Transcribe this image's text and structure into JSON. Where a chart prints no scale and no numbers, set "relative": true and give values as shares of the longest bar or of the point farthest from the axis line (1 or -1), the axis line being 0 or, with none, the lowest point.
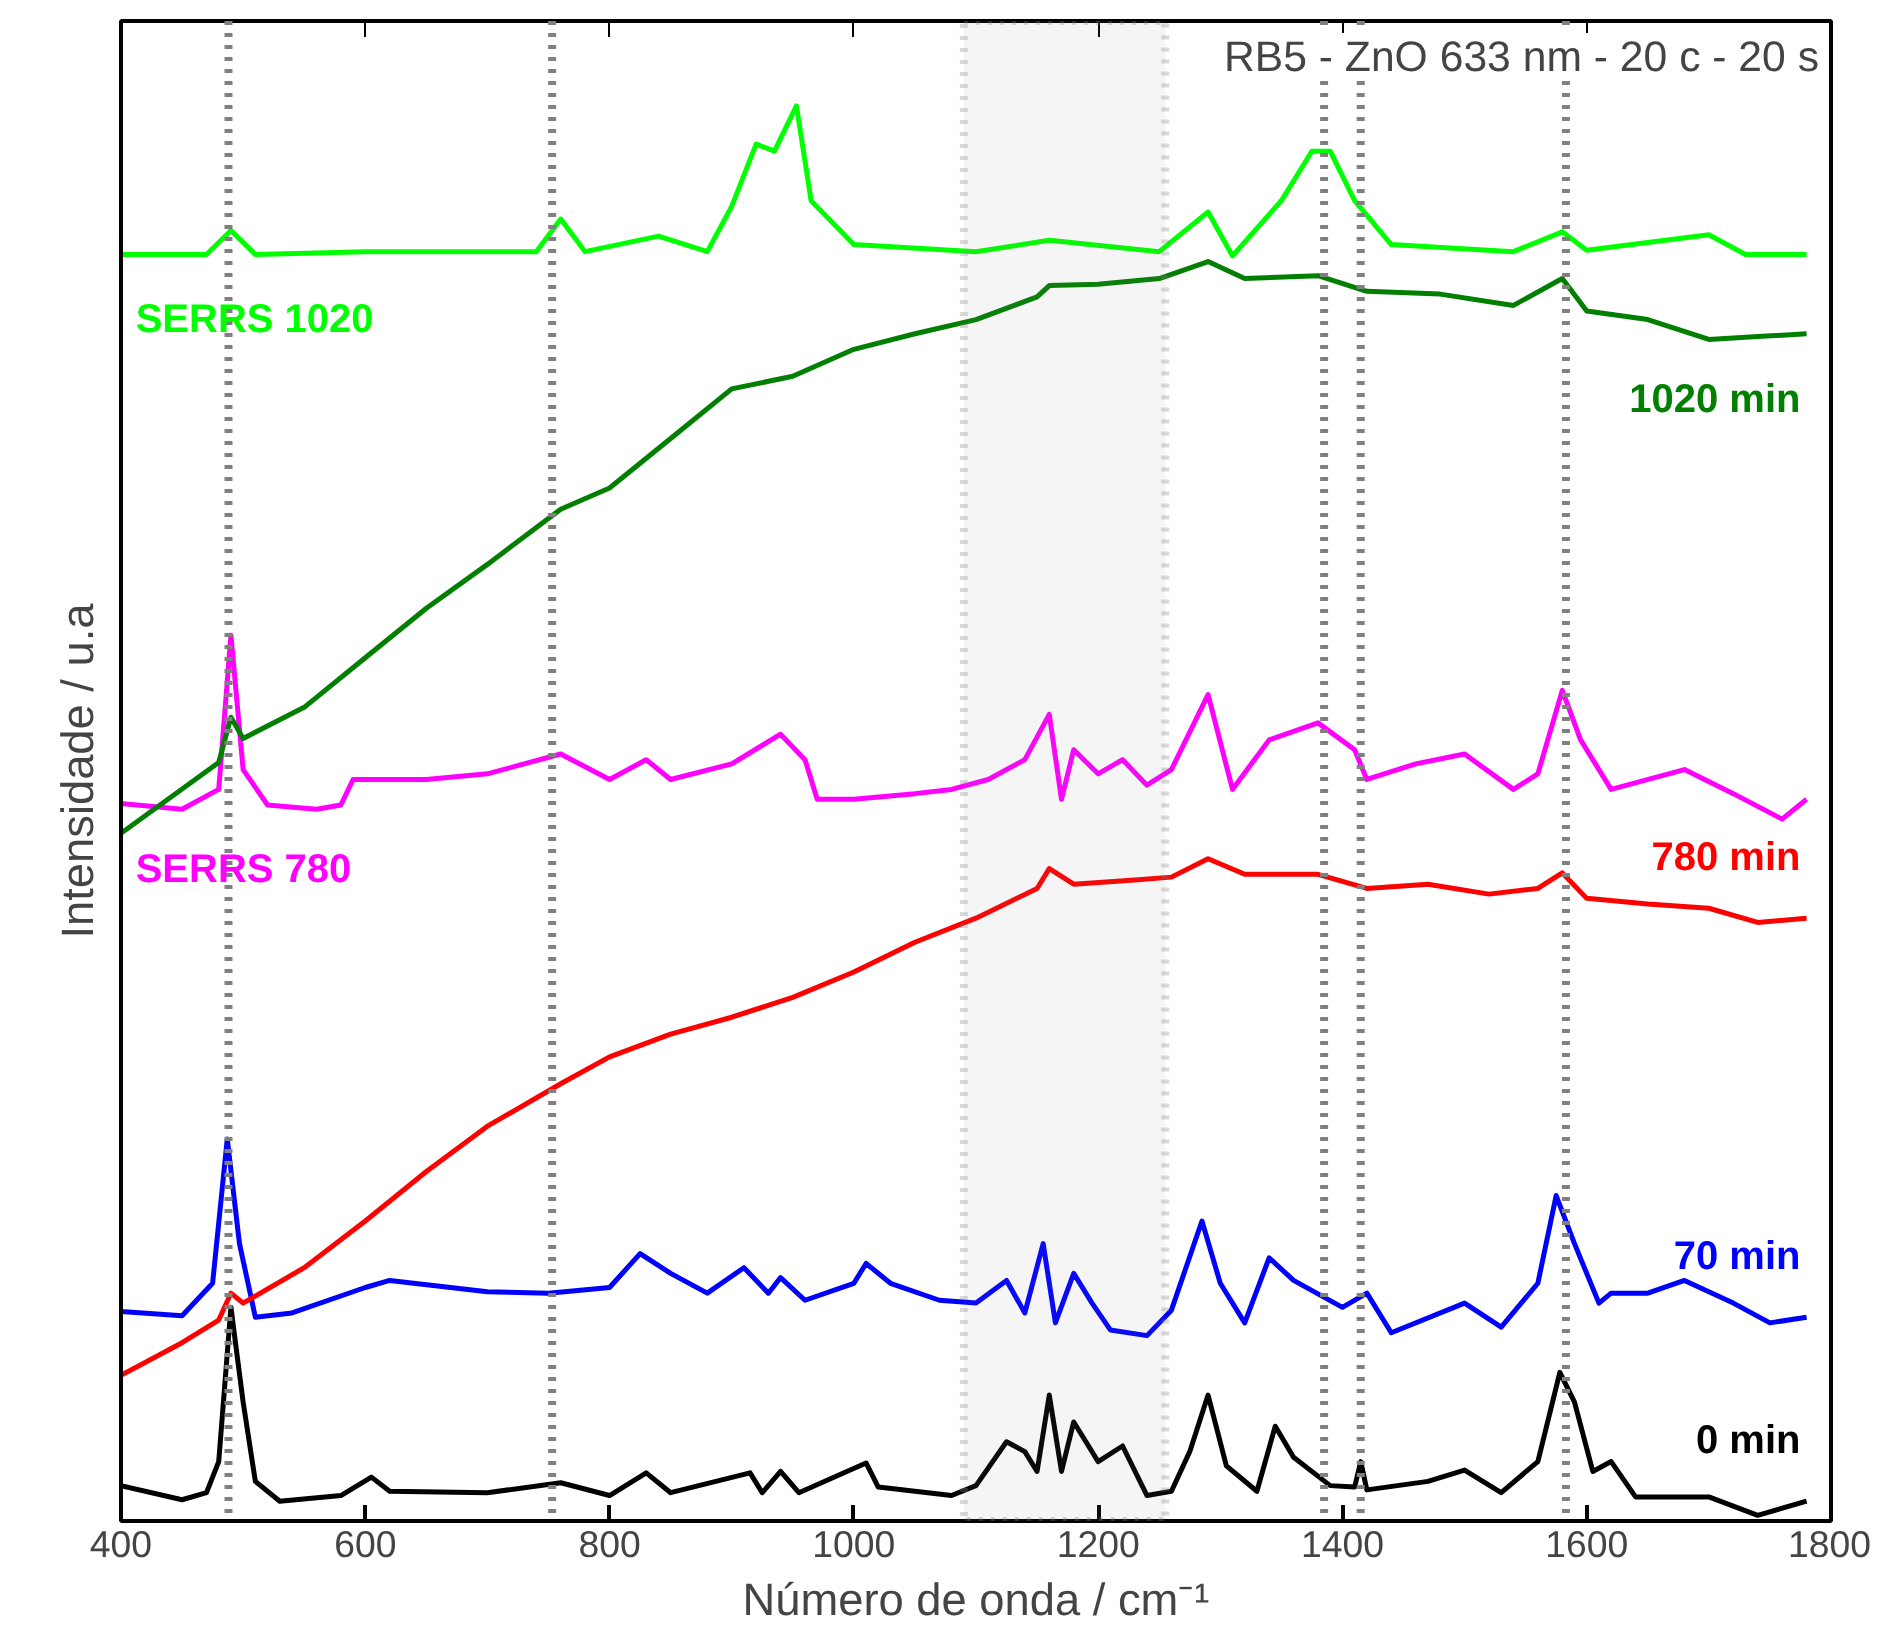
{
  "chart_data": {
    "type": "line",
    "relative": true,
    "title": "RB5 - ZnO 633 nm - 20 c - 20 s",
    "xlabel": "Número de onda / cm⁻¹",
    "ylabel": "Intensidade / u.a",
    "xlim": [
      400,
      1800
    ],
    "xticks": [
      400,
      600,
      800,
      1000,
      1200,
      1400,
      1600,
      1800
    ],
    "grid": false,
    "line_style": "solid",
    "marker": "none",
    "series": [
      {
        "name": "0 min",
        "color": "#000000",
        "x": [
          400,
          450,
          470,
          480,
          490,
          500,
          510,
          530,
          580,
          605,
          620,
          700,
          760,
          800,
          830,
          850,
          915,
          925,
          940,
          955,
          1010,
          1020,
          1080,
          1100,
          1125,
          1140,
          1150,
          1160,
          1170,
          1180,
          1190,
          1200,
          1220,
          1240,
          1260,
          1275,
          1290,
          1305,
          1330,
          1345,
          1360,
          1390,
          1410,
          1415,
          1420,
          1470,
          1500,
          1530,
          1560,
          1578,
          1590,
          1605,
          1620,
          1640,
          1700,
          1740,
          1780
        ],
        "values": [
          0.025,
          0.015,
          0.02,
          0.042,
          0.151,
          0.084,
          0.028,
          0.014,
          0.018,
          0.031,
          0.021,
          0.02,
          0.027,
          0.018,
          0.034,
          0.02,
          0.034,
          0.02,
          0.035,
          0.02,
          0.041,
          0.024,
          0.018,
          0.025,
          0.056,
          0.049,
          0.035,
          0.089,
          0.035,
          0.07,
          0.056,
          0.042,
          0.053,
          0.018,
          0.021,
          0.049,
          0.089,
          0.039,
          0.021,
          0.067,
          0.045,
          0.025,
          0.024,
          0.042,
          0.022,
          0.028,
          0.036,
          0.02,
          0.042,
          0.105,
          0.084,
          0.035,
          0.042,
          0.017,
          0.017,
          0.004,
          0.014
        ]
      },
      {
        "name": "70 min",
        "color": "#0000ff",
        "x": [
          400,
          450,
          475,
          487,
          497,
          510,
          540,
          600,
          620,
          700,
          750,
          800,
          825,
          850,
          880,
          910,
          930,
          940,
          960,
          1000,
          1010,
          1030,
          1070,
          1100,
          1125,
          1140,
          1155,
          1165,
          1180,
          1195,
          1210,
          1240,
          1260,
          1285,
          1300,
          1320,
          1340,
          1360,
          1400,
          1420,
          1440,
          1500,
          1530,
          1560,
          1575,
          1590,
          1610,
          1620,
          1650,
          1680,
          1720,
          1750,
          1780
        ],
        "values": [
          0.148,
          0.145,
          0.168,
          0.27,
          0.196,
          0.144,
          0.147,
          0.165,
          0.17,
          0.162,
          0.161,
          0.165,
          0.189,
          0.175,
          0.161,
          0.179,
          0.161,
          0.172,
          0.156,
          0.168,
          0.182,
          0.168,
          0.156,
          0.154,
          0.17,
          0.147,
          0.196,
          0.14,
          0.175,
          0.154,
          0.135,
          0.131,
          0.149,
          0.212,
          0.168,
          0.14,
          0.186,
          0.17,
          0.151,
          0.161,
          0.133,
          0.154,
          0.137,
          0.168,
          0.23,
          0.196,
          0.154,
          0.161,
          0.161,
          0.17,
          0.154,
          0.14,
          0.144
        ]
      },
      {
        "name": "780 min",
        "color": "#ff0000",
        "x": [
          400,
          450,
          480,
          490,
          500,
          550,
          600,
          650,
          700,
          760,
          800,
          850,
          900,
          950,
          1000,
          1050,
          1100,
          1150,
          1160,
          1180,
          1230,
          1260,
          1290,
          1320,
          1380,
          1420,
          1470,
          1520,
          1560,
          1580,
          1600,
          1650,
          1700,
          1740,
          1780
        ],
        "values": [
          0.103,
          0.126,
          0.142,
          0.161,
          0.154,
          0.179,
          0.212,
          0.247,
          0.279,
          0.309,
          0.328,
          0.344,
          0.356,
          0.37,
          0.388,
          0.409,
          0.426,
          0.447,
          0.461,
          0.45,
          0.453,
          0.455,
          0.468,
          0.457,
          0.457,
          0.447,
          0.45,
          0.443,
          0.447,
          0.458,
          0.44,
          0.436,
          0.433,
          0.423,
          0.426
        ]
      },
      {
        "name": "SERRS 780",
        "color": "#ff00ff",
        "x": [
          400,
          450,
          480,
          490,
          500,
          520,
          560,
          580,
          590,
          650,
          700,
          760,
          800,
          830,
          850,
          900,
          940,
          960,
          970,
          1000,
          1050,
          1080,
          1110,
          1140,
          1160,
          1170,
          1180,
          1200,
          1220,
          1240,
          1260,
          1290,
          1310,
          1340,
          1380,
          1410,
          1420,
          1460,
          1500,
          1540,
          1560,
          1580,
          1595,
          1620,
          1680,
          1720,
          1760,
          1780
        ],
        "values": [
          0.507,
          0.503,
          0.517,
          0.626,
          0.531,
          0.506,
          0.503,
          0.506,
          0.524,
          0.524,
          0.528,
          0.542,
          0.524,
          0.538,
          0.524,
          0.535,
          0.556,
          0.538,
          0.51,
          0.51,
          0.514,
          0.517,
          0.524,
          0.538,
          0.57,
          0.51,
          0.545,
          0.528,
          0.538,
          0.52,
          0.531,
          0.584,
          0.517,
          0.552,
          0.564,
          0.545,
          0.524,
          0.535,
          0.542,
          0.517,
          0.528,
          0.587,
          0.552,
          0.517,
          0.531,
          0.514,
          0.496,
          0.51
        ]
      },
      {
        "name": "1020 min",
        "color": "#007f00",
        "x": [
          400,
          480,
          490,
          500,
          550,
          600,
          650,
          700,
          760,
          800,
          850,
          900,
          950,
          1000,
          1050,
          1100,
          1150,
          1160,
          1200,
          1250,
          1290,
          1320,
          1380,
          1420,
          1480,
          1540,
          1580,
          1600,
          1650,
          1700,
          1740,
          1780
        ],
        "values": [
          0.486,
          0.536,
          0.568,
          0.553,
          0.575,
          0.61,
          0.645,
          0.676,
          0.715,
          0.73,
          0.765,
          0.8,
          0.809,
          0.828,
          0.839,
          0.849,
          0.865,
          0.873,
          0.874,
          0.878,
          0.89,
          0.878,
          0.88,
          0.869,
          0.867,
          0.859,
          0.878,
          0.855,
          0.849,
          0.835,
          0.837,
          0.839
        ]
      },
      {
        "name": "SERRS 1020",
        "color": "#00ff00",
        "x": [
          400,
          470,
          490,
          510,
          600,
          740,
          760,
          780,
          840,
          880,
          900,
          920,
          935,
          953,
          965,
          1000,
          1100,
          1160,
          1250,
          1290,
          1310,
          1350,
          1375,
          1390,
          1410,
          1440,
          1540,
          1580,
          1600,
          1700,
          1730,
          1780
        ],
        "values": [
          0.895,
          0.895,
          0.912,
          0.895,
          0.897,
          0.897,
          0.92,
          0.897,
          0.908,
          0.897,
          0.929,
          0.973,
          0.968,
          1.0,
          0.933,
          0.902,
          0.897,
          0.905,
          0.897,
          0.925,
          0.894,
          0.933,
          0.968,
          0.968,
          0.933,
          0.902,
          0.897,
          0.911,
          0.898,
          0.909,
          0.895,
          0.895
        ]
      }
    ],
    "ref_lines": [
      {
        "axis": "x",
        "value": 488,
        "color": "#808080",
        "line_style": "dotted"
      },
      {
        "axis": "x",
        "value": 753,
        "color": "#808080",
        "line_style": "dotted"
      },
      {
        "axis": "x",
        "value": 1385,
        "color": "#808080",
        "line_style": "dotted"
      },
      {
        "axis": "x",
        "value": 1415,
        "color": "#808080",
        "line_style": "dotted"
      },
      {
        "axis": "x",
        "value": 1583,
        "color": "#808080",
        "line_style": "dotted"
      }
    ],
    "bands": [
      {
        "axis": "x",
        "from": 1090,
        "to": 1255,
        "color": "#808080"
      }
    ]
  }
}
